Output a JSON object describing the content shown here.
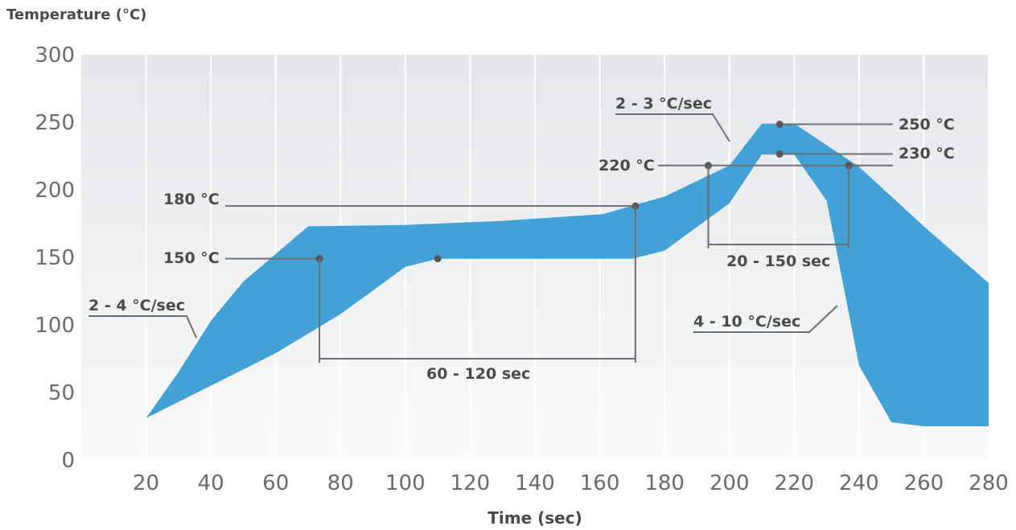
{
  "chart_data": {
    "type": "area",
    "xlabel": "Time (sec)",
    "ylabel": "Temperature (°C)",
    "xlim": [
      0,
      280
    ],
    "ylim": [
      0,
      300
    ],
    "x_ticks": [
      20,
      40,
      60,
      80,
      100,
      120,
      140,
      160,
      180,
      200,
      220,
      240,
      260,
      280
    ],
    "y_ticks": [
      0,
      50,
      100,
      150,
      200,
      250,
      300
    ],
    "grid": "vertical",
    "band_color": "#42a1d7",
    "series": [
      {
        "role": "upper",
        "points": [
          [
            0,
            25
          ],
          [
            13,
            26
          ],
          [
            20,
            31
          ],
          [
            30,
            65
          ],
          [
            40,
            103
          ],
          [
            50,
            132
          ],
          [
            70,
            173
          ],
          [
            100,
            174
          ],
          [
            130,
            177
          ],
          [
            161,
            182
          ],
          [
            180,
            195
          ],
          [
            200,
            218
          ],
          [
            210,
            249
          ],
          [
            220,
            249
          ],
          [
            240,
            217
          ],
          [
            260,
            173
          ],
          [
            280,
            131
          ]
        ]
      },
      {
        "role": "lower",
        "points": [
          [
            0,
            25
          ],
          [
            13,
            26
          ],
          [
            20,
            31
          ],
          [
            40,
            55
          ],
          [
            60,
            79
          ],
          [
            80,
            108
          ],
          [
            100,
            143
          ],
          [
            110,
            149
          ],
          [
            170,
            149
          ],
          [
            180,
            155
          ],
          [
            200,
            190
          ],
          [
            210,
            226
          ],
          [
            220,
            226
          ],
          [
            230,
            192
          ],
          [
            240,
            70
          ],
          [
            250,
            28
          ],
          [
            260,
            25
          ],
          [
            280,
            25
          ]
        ]
      }
    ],
    "annotations": {
      "t150": "150 °C",
      "t180": "180 °C",
      "t220": "220 °C",
      "t230": "230 °C",
      "t250": "250 °C",
      "ramp1": "2 - 4 °C/sec",
      "ramp2": "2 - 3 °C/sec",
      "cool": "4 - 10 °C/sec",
      "soak": "60 - 120 sec",
      "reflow": "20 - 150 sec"
    }
  }
}
